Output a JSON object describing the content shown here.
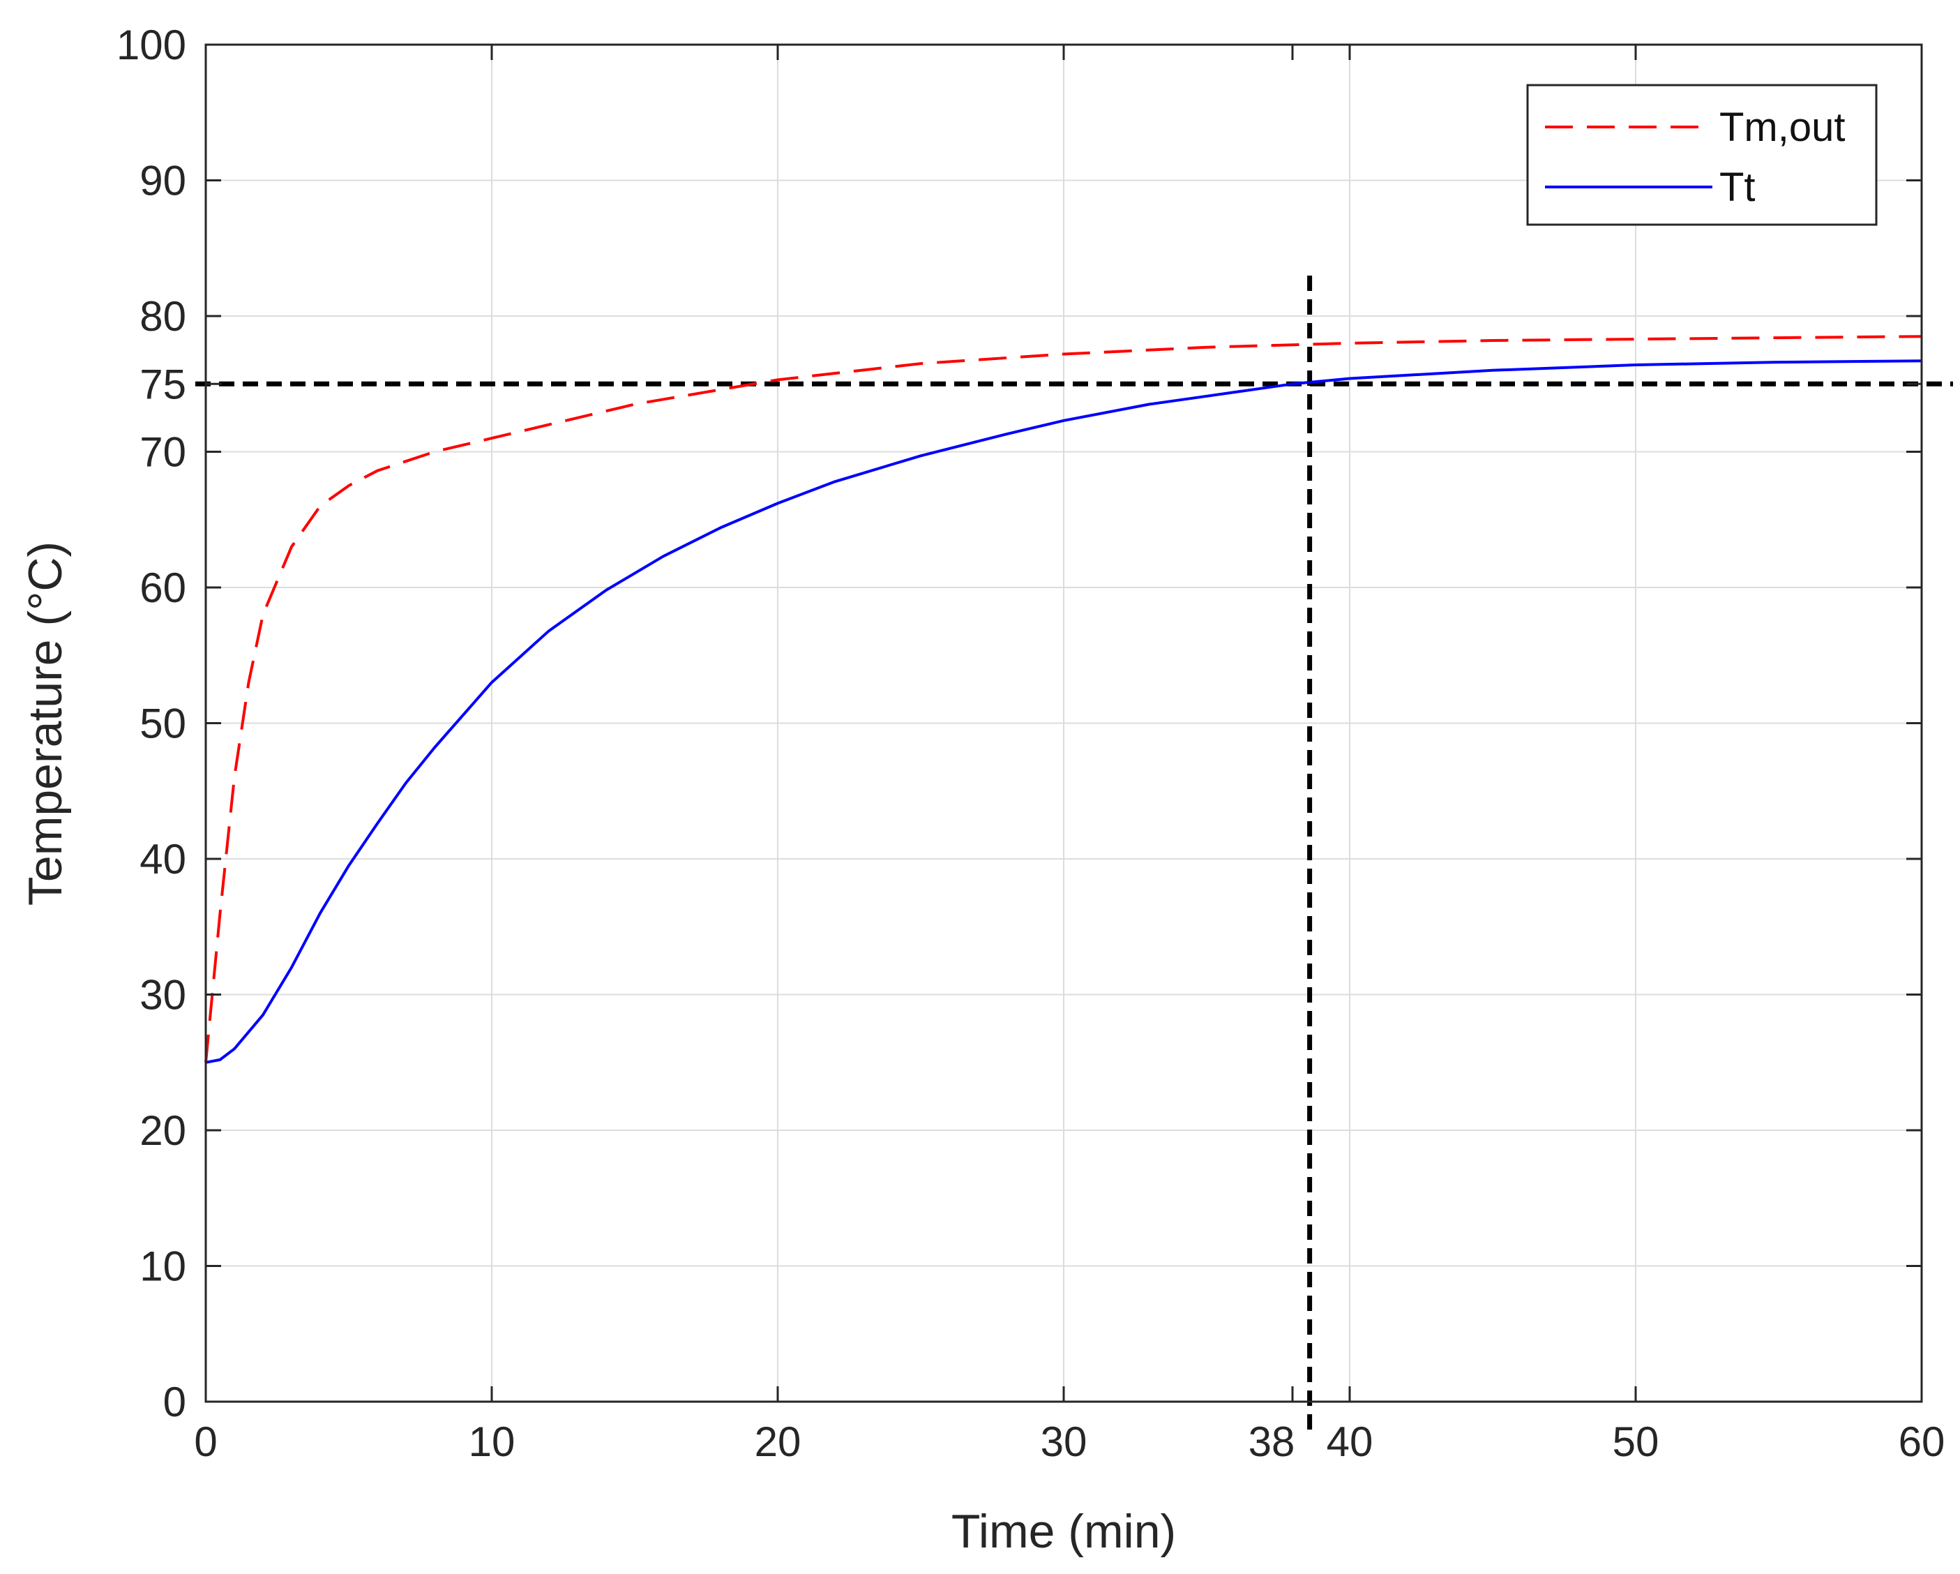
{
  "chart_data": {
    "type": "line",
    "title": "",
    "xlabel": "Time (min)",
    "ylabel": "Temperature (°C)",
    "xlim": [
      0,
      60
    ],
    "ylim": [
      0,
      100
    ],
    "xticks": [
      0,
      10,
      20,
      30,
      38,
      40,
      50,
      60
    ],
    "yticks": [
      0,
      10,
      20,
      30,
      40,
      50,
      60,
      70,
      75,
      80,
      90,
      100
    ],
    "grid": true,
    "legend_position": "top-right",
    "series": [
      {
        "name": "Tm,out",
        "color": "#ff0000",
        "style": "dashed",
        "x": [
          0,
          0.5,
          1,
          1.5,
          2,
          3,
          4,
          5,
          6,
          8,
          10,
          12,
          15,
          20,
          25,
          30,
          35,
          40,
          45,
          50,
          55,
          60
        ],
        "y": [
          25,
          36,
          46,
          53,
          58,
          63,
          66,
          67.5,
          68.6,
          70,
          71,
          72,
          73.5,
          75.3,
          76.5,
          77.2,
          77.7,
          78,
          78.2,
          78.3,
          78.4,
          78.5
        ]
      },
      {
        "name": "Tt",
        "color": "#0000ff",
        "style": "solid",
        "x": [
          0,
          0.5,
          1,
          2,
          3,
          4,
          5,
          6,
          7,
          8,
          10,
          12,
          14,
          16,
          18,
          20,
          22,
          25,
          28,
          30,
          33,
          35,
          38,
          40,
          45,
          50,
          55,
          60
        ],
        "y": [
          25,
          25.2,
          26,
          28.5,
          32,
          36,
          39.5,
          42.6,
          45.6,
          48.2,
          53,
          56.8,
          59.8,
          62.3,
          64.4,
          66.2,
          67.8,
          69.7,
          71.3,
          72.3,
          73.5,
          74.1,
          75,
          75.4,
          76,
          76.4,
          76.6,
          76.7
        ]
      }
    ],
    "reference_lines": [
      {
        "orientation": "horizontal",
        "value": 75,
        "color": "#000000",
        "style": "dashed"
      },
      {
        "orientation": "vertical",
        "value": 38.6,
        "color": "#000000",
        "style": "dashed"
      }
    ]
  }
}
